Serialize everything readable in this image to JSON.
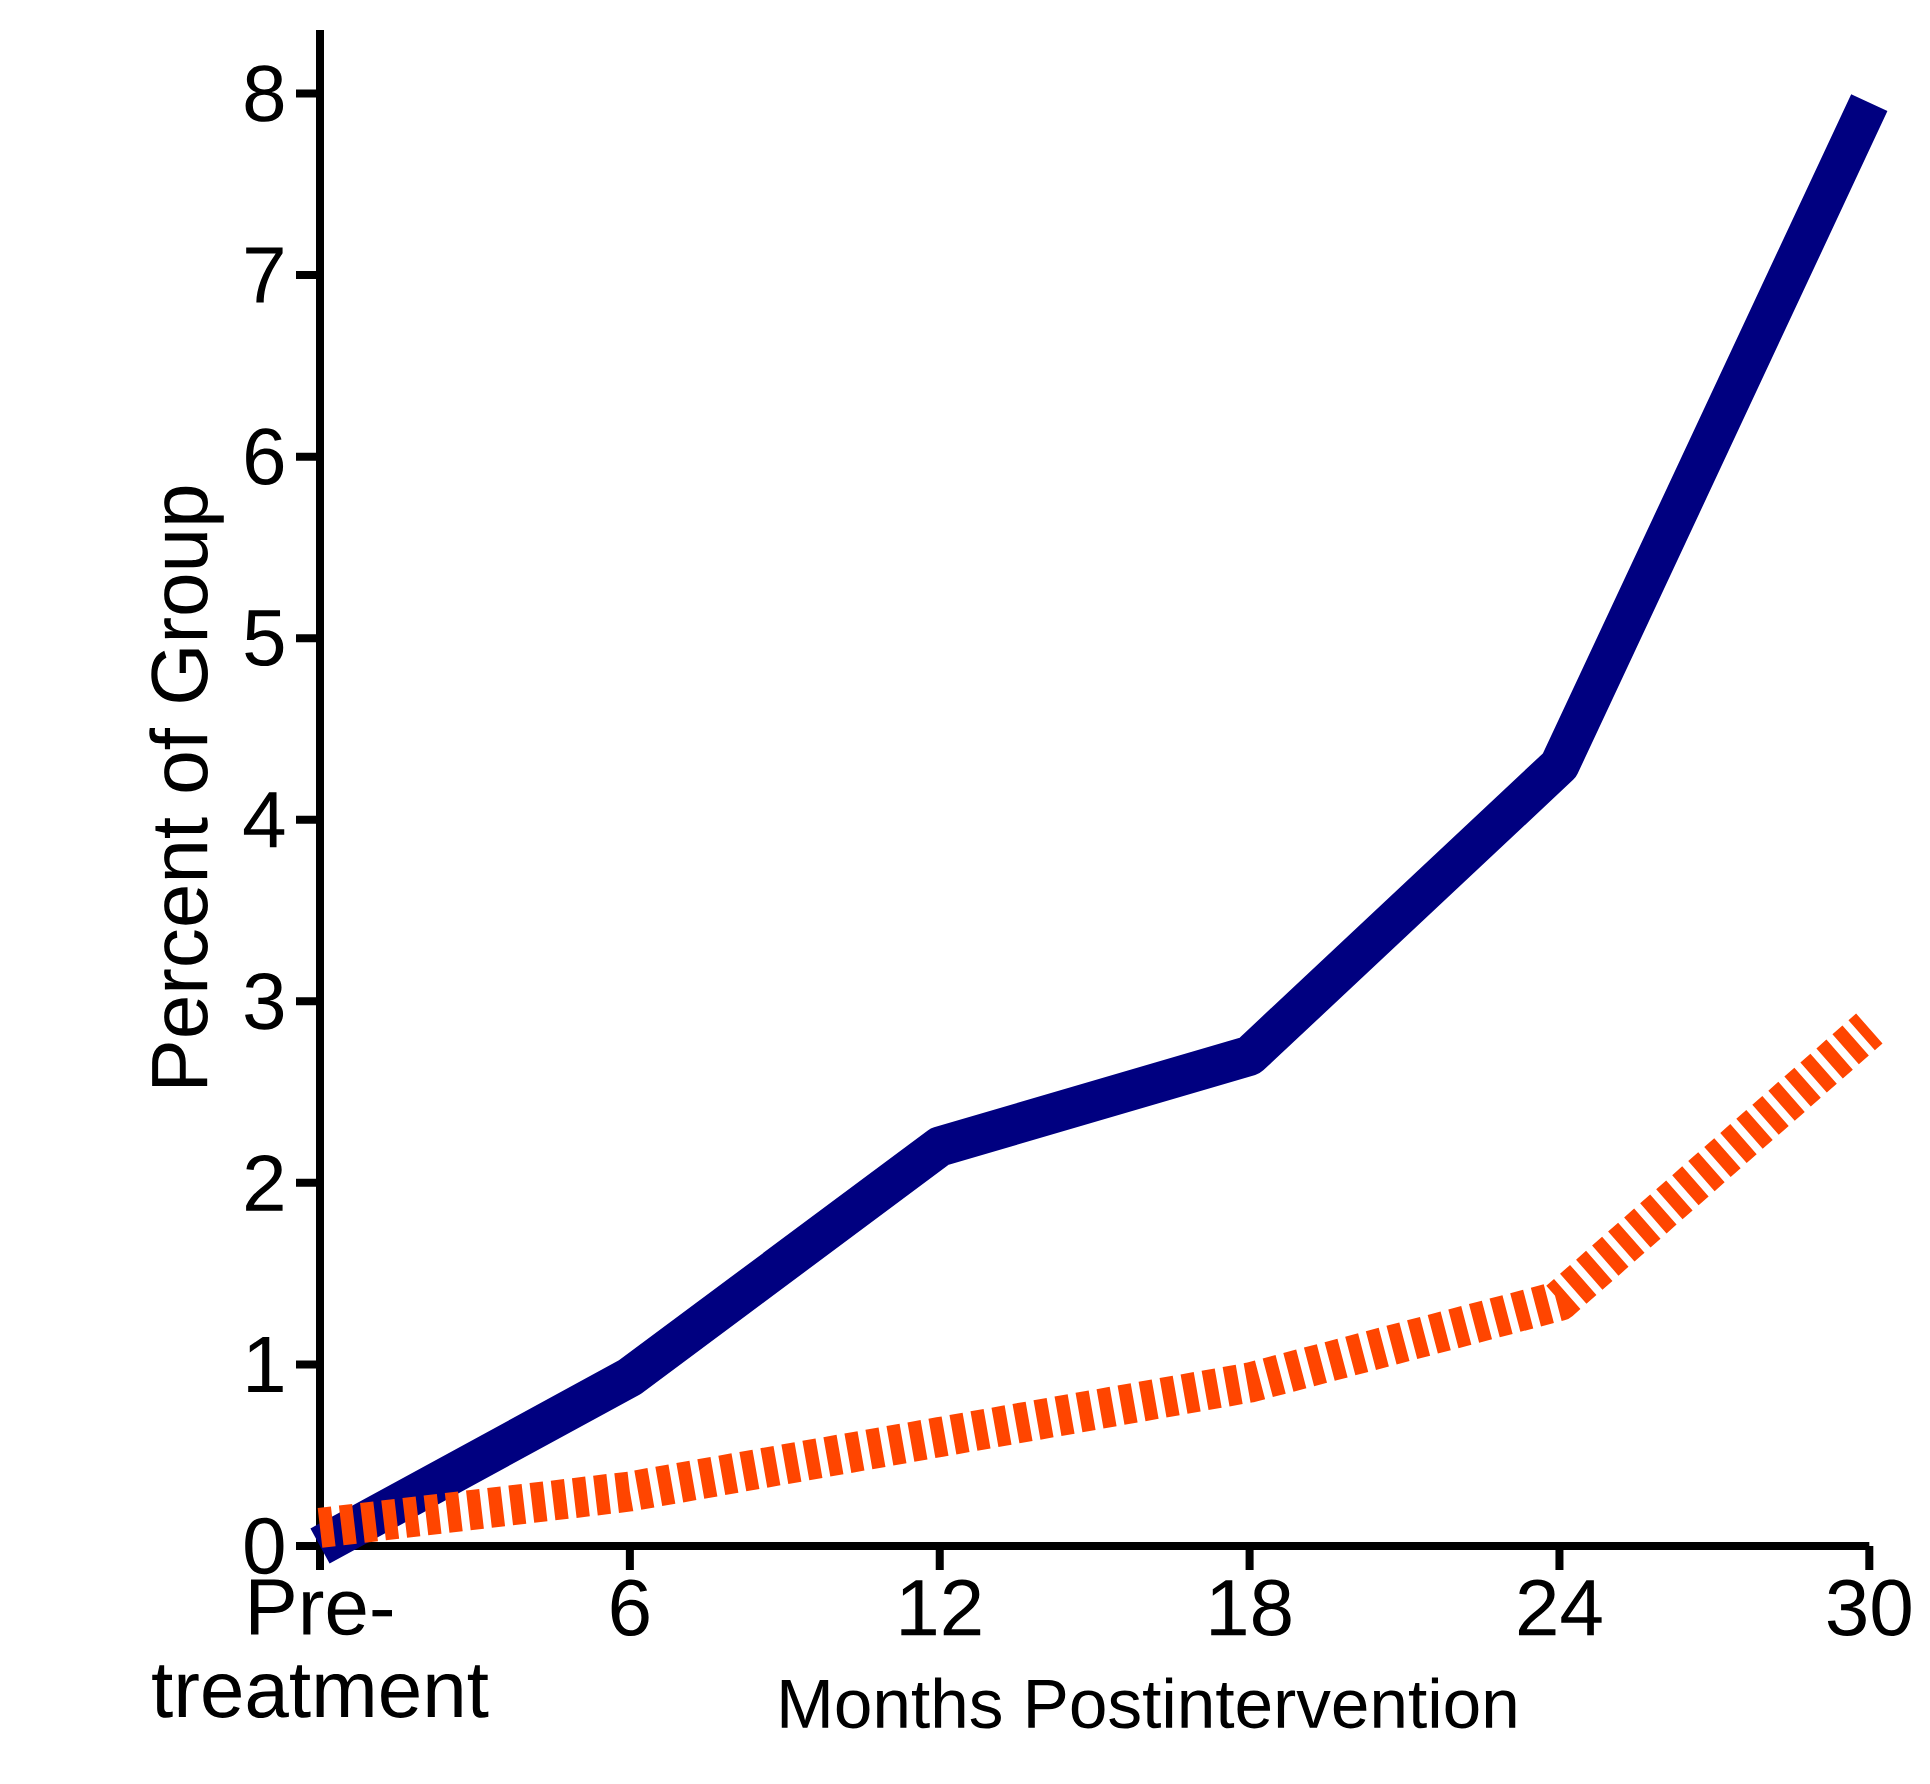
{
  "chart_data": {
    "type": "line",
    "xlabel": "Months Postintervention",
    "ylabel": "Percent of Group",
    "categories": [
      "Pre-treatment",
      "6",
      "12",
      "18",
      "24",
      "30"
    ],
    "series": [
      {
        "color": "#000080",
        "line_style": "solid",
        "values": [
          0,
          0.93,
          2.2,
          2.7,
          4.3,
          7.95
        ]
      },
      {
        "color": "#ff4500",
        "line_style": "dotted",
        "values": [
          0.1,
          0.3,
          0.6,
          0.9,
          1.35,
          2.85
        ]
      }
    ],
    "ylim": [
      0,
      8.35
    ],
    "yticks": [
      0,
      1,
      2,
      3,
      4,
      5,
      6,
      7,
      8
    ]
  }
}
